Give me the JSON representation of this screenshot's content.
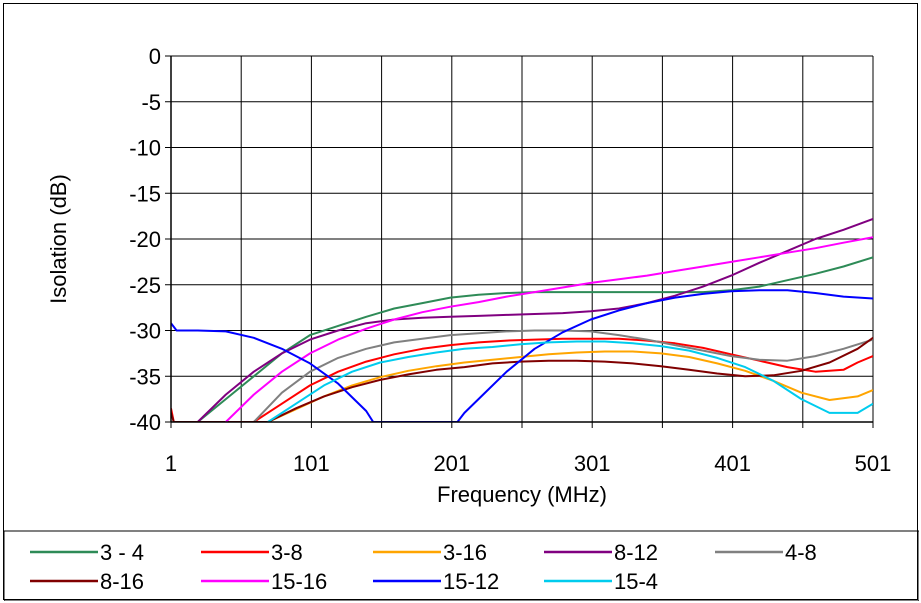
{
  "chart_data": {
    "type": "line",
    "title": "",
    "xlabel": "Frequency (MHz)",
    "ylabel": "Isolation (dB)",
    "xlim": [
      1,
      501
    ],
    "ylim": [
      -40,
      0
    ],
    "xticks": [
      1,
      101,
      201,
      301,
      401,
      501
    ],
    "yticks": [
      0,
      -5,
      -10,
      -15,
      -20,
      -25,
      -30,
      -35,
      -40
    ],
    "grid": true,
    "legend_position": "bottom",
    "series": [
      {
        "name": "3 - 4",
        "color": "#2e8b57",
        "x": [
          20,
          40,
          60,
          80,
          100,
          120,
          140,
          160,
          180,
          200,
          220,
          240,
          260,
          280,
          300,
          320,
          340,
          360,
          380,
          400,
          420,
          440,
          460,
          480,
          501
        ],
        "y": [
          -40,
          -37.5,
          -35,
          -32.5,
          -30.5,
          -29.5,
          -28.5,
          -27.6,
          -27,
          -26.4,
          -26.1,
          -25.9,
          -25.8,
          -25.8,
          -25.8,
          -25.8,
          -25.8,
          -25.8,
          -25.8,
          -25.6,
          -25.2,
          -24.5,
          -23.8,
          -23,
          -22
        ]
      },
      {
        "name": "3-8",
        "color": "#ff0000",
        "x": [
          1,
          3,
          60,
          80,
          100,
          120,
          140,
          160,
          180,
          200,
          220,
          240,
          260,
          280,
          300,
          320,
          340,
          360,
          380,
          400,
          420,
          440,
          460,
          480,
          490,
          501
        ],
        "y": [
          -38.5,
          -40,
          -40,
          -38,
          -36,
          -34.5,
          -33.4,
          -32.6,
          -32,
          -31.6,
          -31.3,
          -31.1,
          -31,
          -30.9,
          -30.9,
          -30.9,
          -31.1,
          -31.4,
          -31.9,
          -32.6,
          -33.3,
          -34,
          -34.5,
          -34.3,
          -33.5,
          -32.8
        ]
      },
      {
        "name": "3-16",
        "color": "#ffa500",
        "x": [
          70,
          90,
          110,
          130,
          150,
          170,
          190,
          210,
          230,
          250,
          270,
          290,
          310,
          330,
          350,
          370,
          390,
          410,
          430,
          450,
          470,
          490,
          501
        ],
        "y": [
          -40,
          -38.6,
          -37.2,
          -36,
          -35.1,
          -34.4,
          -33.9,
          -33.5,
          -33.2,
          -32.9,
          -32.6,
          -32.4,
          -32.3,
          -32.3,
          -32.5,
          -32.9,
          -33.6,
          -34.4,
          -35.5,
          -36.8,
          -37.6,
          -37.2,
          -36.5
        ]
      },
      {
        "name": "8-12",
        "color": "#800080",
        "x": [
          1,
          20,
          40,
          60,
          80,
          100,
          120,
          140,
          160,
          180,
          200,
          220,
          240,
          260,
          280,
          300,
          320,
          340,
          360,
          380,
          400,
          420,
          440,
          460,
          480,
          501
        ],
        "y": [
          -41,
          -40,
          -37,
          -34.5,
          -32.5,
          -31,
          -30,
          -29.2,
          -28.8,
          -28.6,
          -28.5,
          -28.4,
          -28.3,
          -28.2,
          -28.1,
          -27.9,
          -27.6,
          -27,
          -26.2,
          -25.2,
          -24,
          -22.6,
          -21.3,
          -20,
          -19,
          -17.8
        ]
      },
      {
        "name": "4-8",
        "color": "#808080",
        "x": [
          60,
          80,
          100,
          120,
          140,
          160,
          180,
          200,
          220,
          240,
          260,
          280,
          300,
          320,
          340,
          360,
          380,
          400,
          420,
          440,
          460,
          480,
          501
        ],
        "y": [
          -40,
          -36.8,
          -34.5,
          -33,
          -32,
          -31.3,
          -30.9,
          -30.5,
          -30.3,
          -30.1,
          -30,
          -30,
          -30.1,
          -30.5,
          -31,
          -31.6,
          -32.2,
          -32.8,
          -33.2,
          -33.3,
          -32.8,
          -32,
          -31
        ]
      },
      {
        "name": "8-16",
        "color": "#800000",
        "x": [
          1,
          3,
          70,
          90,
          110,
          130,
          150,
          170,
          190,
          210,
          230,
          250,
          270,
          290,
          310,
          330,
          350,
          370,
          390,
          410,
          430,
          450,
          470,
          490,
          501
        ],
        "y": [
          -39,
          -40,
          -40,
          -38.5,
          -37.2,
          -36.2,
          -35.4,
          -34.8,
          -34.3,
          -34,
          -33.6,
          -33.4,
          -33.3,
          -33.3,
          -33.4,
          -33.6,
          -33.9,
          -34.3,
          -34.7,
          -35,
          -34.9,
          -34.4,
          -33.5,
          -32,
          -30.8
        ]
      },
      {
        "name": "15-16",
        "color": "#ff00ff",
        "x": [
          40,
          60,
          80,
          100,
          120,
          140,
          160,
          180,
          200,
          220,
          240,
          260,
          280,
          300,
          320,
          340,
          360,
          380,
          400,
          420,
          440,
          460,
          480,
          501
        ],
        "y": [
          -40,
          -37,
          -34.5,
          -32.5,
          -31,
          -29.8,
          -28.8,
          -28,
          -27.4,
          -26.9,
          -26.3,
          -25.8,
          -25.3,
          -24.8,
          -24.4,
          -24,
          -23.5,
          -23,
          -22.5,
          -22,
          -21.5,
          -21,
          -20.4,
          -19.8
        ]
      },
      {
        "name": "15-12",
        "color": "#0000ff",
        "x": [
          1,
          5,
          20,
          40,
          60,
          80,
          100,
          120,
          140,
          145,
          205,
          210,
          220,
          240,
          260,
          280,
          300,
          320,
          340,
          360,
          380,
          400,
          420,
          440,
          460,
          480,
          501
        ],
        "y": [
          -29.2,
          -30,
          -30,
          -30.1,
          -30.8,
          -32,
          -33.6,
          -35.8,
          -38.8,
          -40,
          -40,
          -39,
          -37.5,
          -34.5,
          -32,
          -30.2,
          -28.8,
          -27.8,
          -27,
          -26.4,
          -26,
          -25.7,
          -25.6,
          -25.6,
          -25.9,
          -26.3,
          -26.5
        ]
      },
      {
        "name": "15-4",
        "color": "#00ccee",
        "x": [
          70,
          90,
          110,
          130,
          150,
          170,
          190,
          210,
          230,
          250,
          270,
          290,
          310,
          330,
          350,
          370,
          390,
          410,
          430,
          450,
          470,
          490,
          501
        ],
        "y": [
          -40,
          -38,
          -36,
          -34.5,
          -33.5,
          -32.9,
          -32.4,
          -32,
          -31.8,
          -31.5,
          -31.3,
          -31.2,
          -31.2,
          -31.4,
          -31.7,
          -32.2,
          -33,
          -34,
          -35.5,
          -37.5,
          -39,
          -39,
          -38
        ]
      }
    ]
  }
}
